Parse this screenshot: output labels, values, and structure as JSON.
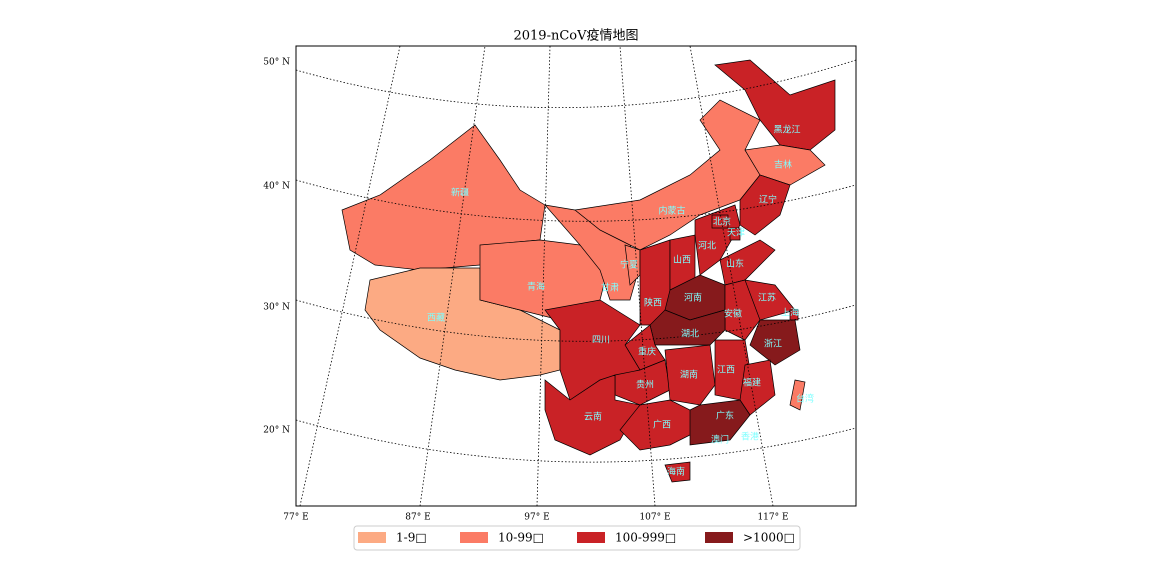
{
  "title": "2019-nCoV疫情地图",
  "lat_labels": [
    "50° N",
    "40° N",
    "30° N",
    "20° N"
  ],
  "lon_labels": [
    "77° E",
    "87° E",
    "97° E",
    "107° E",
    "117° E"
  ],
  "legend": [
    {
      "label": "1-9□",
      "color": "#fcaa83"
    },
    {
      "label": "10-99□",
      "color": "#fb7b65"
    },
    {
      "label": "100-999□",
      "color": "#c92226"
    },
    {
      "label": ">1000□",
      "color": "#861a1c"
    }
  ],
  "provinces": [
    {
      "name": "新疆",
      "color": "#fb7b65"
    },
    {
      "name": "西藏",
      "color": "#fcaa83"
    },
    {
      "name": "青海",
      "color": "#fb7b65"
    },
    {
      "name": "甘肃",
      "color": "#fb7b65"
    },
    {
      "name": "内蒙古",
      "color": "#fb7b65"
    },
    {
      "name": "黑龙江",
      "color": "#c92226"
    },
    {
      "name": "吉林",
      "color": "#fb7b65"
    },
    {
      "name": "辽宁",
      "color": "#c92226"
    },
    {
      "name": "宁夏",
      "color": "#fb7b65"
    },
    {
      "name": "陕西",
      "color": "#c92226"
    },
    {
      "name": "山西",
      "color": "#c92226"
    },
    {
      "name": "河北",
      "color": "#c92226"
    },
    {
      "name": "北京",
      "color": "#c92226"
    },
    {
      "name": "天津",
      "color": "#c92226"
    },
    {
      "name": "山东",
      "color": "#c92226"
    },
    {
      "name": "河南",
      "color": "#861a1c"
    },
    {
      "name": "江苏",
      "color": "#c92226"
    },
    {
      "name": "上海",
      "color": "#c92226"
    },
    {
      "name": "安徽",
      "color": "#c92226"
    },
    {
      "name": "湖北",
      "color": "#861a1c"
    },
    {
      "name": "浙江",
      "color": "#861a1c"
    },
    {
      "name": "重庆",
      "color": "#c92226"
    },
    {
      "name": "四川",
      "color": "#c92226"
    },
    {
      "name": "贵州",
      "color": "#c92226"
    },
    {
      "name": "湖南",
      "color": "#c92226"
    },
    {
      "name": "江西",
      "color": "#c92226"
    },
    {
      "name": "福建",
      "color": "#c92226"
    },
    {
      "name": "云南",
      "color": "#c92226"
    },
    {
      "name": "广西",
      "color": "#c92226"
    },
    {
      "name": "广东",
      "color": "#861a1c"
    },
    {
      "name": "海南",
      "color": "#c92226"
    },
    {
      "name": "台湾",
      "color": "#fb7b65"
    },
    {
      "name": "香港",
      "color": "#c92226"
    },
    {
      "name": "澳门",
      "color": "#c92226"
    }
  ]
}
